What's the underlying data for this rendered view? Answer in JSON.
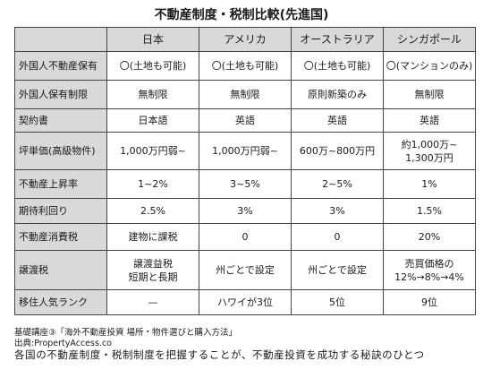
{
  "title": "不動産制度・税制比較(先進国)",
  "columns": [
    "",
    "日本",
    "アメリカ",
    "オーストラリア",
    "シンガポール"
  ],
  "rows": [
    {
      "label": "外国人不動産保有",
      "cells": [
        "〇(土地も可能)",
        "〇(土地も可能)",
        "〇(土地も可能)",
        "〇(マンションのみ)"
      ]
    },
    {
      "label": "外国人保有制限",
      "cells": [
        "無制限",
        "無制限",
        "原則新築のみ",
        "無制限"
      ]
    },
    {
      "label": "契約書",
      "cells": [
        "日本語",
        "英語",
        "英語",
        "英語"
      ]
    },
    {
      "label": "坪単価(高級物件)",
      "cells": [
        "1,000万円弱~",
        "1,000万円弱~",
        "600万~800万円",
        "約1,000万~\n1,300万円"
      ]
    },
    {
      "label": "不動産上昇率",
      "cells": [
        "1~2%",
        "3~5%",
        "2~5%",
        "1%"
      ]
    },
    {
      "label": "期待利回り",
      "cells": [
        "2.5%",
        "3%",
        "3%",
        "1.5%"
      ]
    },
    {
      "label": "不動産消費税",
      "cells": [
        "建物に課税",
        "0",
        "0",
        "20%"
      ]
    },
    {
      "label": "譲渡税",
      "cells": [
        "譲渡益税\n短期と長期",
        "州ごとで設定",
        "州ごとで設定",
        "売買価格の\n12%→8%→4%"
      ]
    },
    {
      "label": "移住人気ランク",
      "cells": [
        "—",
        "ハワイが3位",
        "5位",
        "9位"
      ]
    }
  ],
  "source_line1": "基礎講座③「海外不動産投資 場所・物件選びと購入方法」",
  "source_line2": "出典:PropertyAccess.co",
  "caption": "各国の不動産制度・税制制度を把握することが、不動産投資を成功する秘訣のひとつ"
}
